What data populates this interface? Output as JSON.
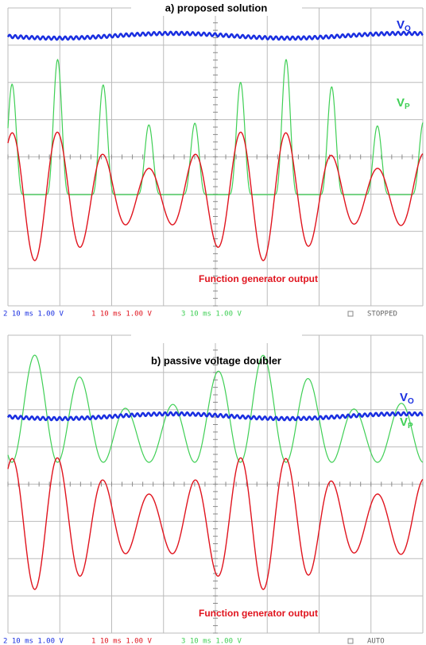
{
  "panels": [
    {
      "title": "a) proposed solution",
      "labels": {
        "vo": {
          "main": "V",
          "sub": "O"
        },
        "vp": {
          "main": "V",
          "sub": "P"
        },
        "generator": "Function generator output"
      },
      "status": [
        "2 10 ms 1.00 V",
        "1 10 ms 1.00 V",
        "3 10 ms 1.00 V",
        "STOPPED"
      ]
    },
    {
      "title": "b) passive voltage doubler",
      "labels": {
        "vo": {
          "main": "V",
          "sub": "O"
        },
        "vp": {
          "main": "V",
          "sub": "P"
        },
        "generator": "Function generator output"
      },
      "status": [
        "2 10 ms 1.00 V",
        "1 10 ms 1.00 V",
        "3 10 ms 1.00 V",
        "AUTO"
      ]
    }
  ]
}
